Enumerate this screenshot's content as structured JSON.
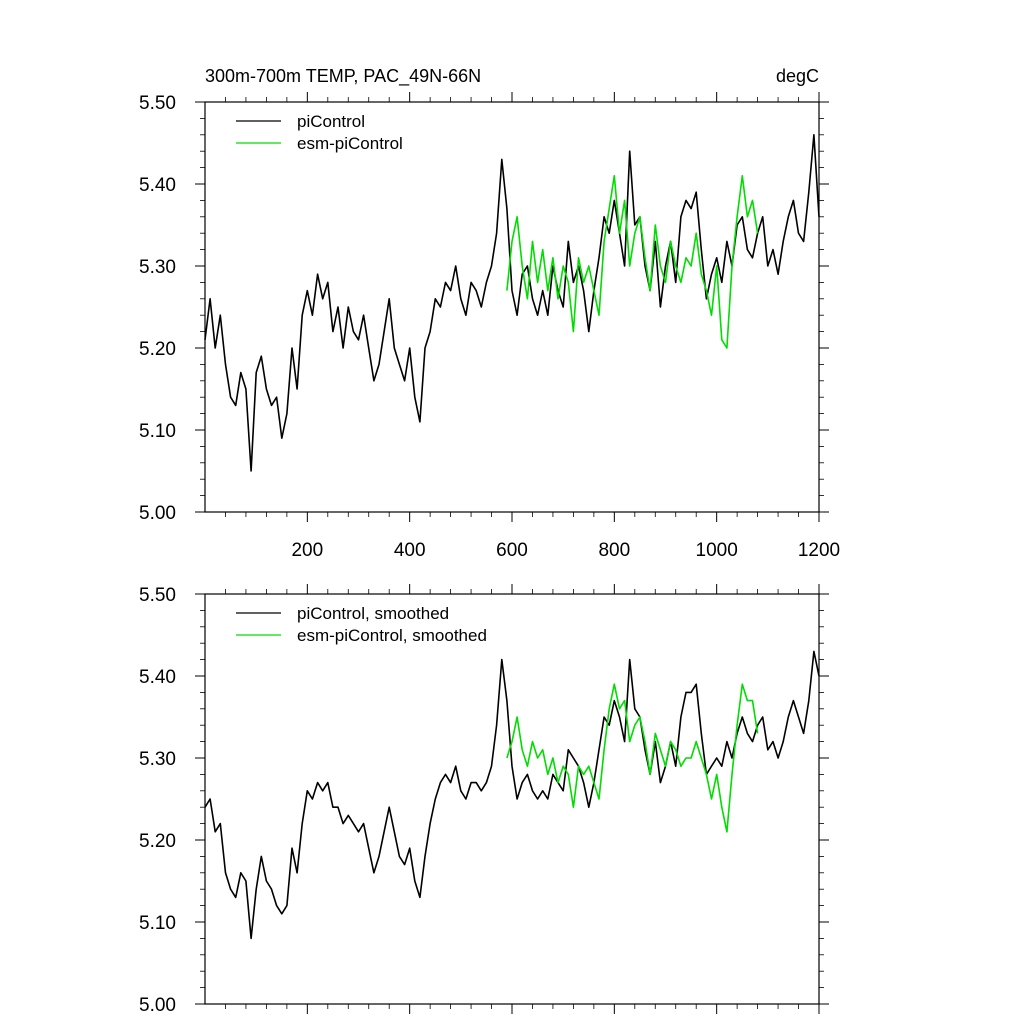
{
  "chart_data": [
    {
      "type": "line",
      "title": "300m-700m TEMP, PAC_49N-66N",
      "units": "degC",
      "xlim": [
        0,
        1200
      ],
      "ylim": [
        5.0,
        5.5
      ],
      "xticks": [
        200,
        400,
        600,
        800,
        1000,
        1200
      ],
      "yticks": [
        "5.00",
        "5.10",
        "5.20",
        "5.30",
        "5.40",
        "5.50"
      ],
      "legend_position": "top-left",
      "series": [
        {
          "name": "piControl",
          "color": "#000000",
          "x": [
            0,
            10,
            20,
            30,
            40,
            50,
            60,
            70,
            80,
            90,
            100,
            110,
            120,
            130,
            140,
            150,
            160,
            170,
            180,
            190,
            200,
            210,
            220,
            230,
            240,
            250,
            260,
            270,
            280,
            290,
            300,
            310,
            320,
            330,
            340,
            350,
            360,
            370,
            380,
            390,
            400,
            410,
            420,
            430,
            440,
            450,
            460,
            470,
            480,
            490,
            500,
            510,
            520,
            530,
            540,
            550,
            560,
            570,
            580,
            590,
            600,
            610,
            620,
            630,
            640,
            650,
            660,
            670,
            680,
            690,
            700,
            710,
            720,
            730,
            740,
            750,
            760,
            770,
            780,
            790,
            800,
            810,
            820,
            830,
            840,
            850,
            860,
            870,
            880,
            890,
            900,
            910,
            920,
            930,
            940,
            950,
            960,
            970,
            980,
            990,
            1000,
            1010,
            1020,
            1030,
            1040,
            1050,
            1060,
            1070,
            1080,
            1090,
            1100,
            1110,
            1120,
            1130,
            1140,
            1150,
            1160,
            1170,
            1180,
            1190,
            1200
          ],
          "values": [
            5.21,
            5.26,
            5.2,
            5.24,
            5.18,
            5.14,
            5.13,
            5.17,
            5.15,
            5.05,
            5.17,
            5.19,
            5.15,
            5.13,
            5.14,
            5.09,
            5.12,
            5.2,
            5.15,
            5.24,
            5.27,
            5.24,
            5.29,
            5.26,
            5.28,
            5.22,
            5.25,
            5.2,
            5.25,
            5.22,
            5.21,
            5.24,
            5.2,
            5.16,
            5.18,
            5.22,
            5.26,
            5.2,
            5.18,
            5.16,
            5.2,
            5.14,
            5.11,
            5.2,
            5.22,
            5.26,
            5.25,
            5.28,
            5.27,
            5.3,
            5.26,
            5.24,
            5.28,
            5.27,
            5.25,
            5.28,
            5.3,
            5.34,
            5.43,
            5.37,
            5.27,
            5.24,
            5.29,
            5.3,
            5.26,
            5.24,
            5.27,
            5.24,
            5.3,
            5.27,
            5.25,
            5.33,
            5.28,
            5.3,
            5.27,
            5.22,
            5.27,
            5.31,
            5.36,
            5.34,
            5.38,
            5.34,
            5.3,
            5.44,
            5.35,
            5.36,
            5.3,
            5.27,
            5.33,
            5.25,
            5.3,
            5.33,
            5.28,
            5.36,
            5.38,
            5.37,
            5.39,
            5.32,
            5.26,
            5.29,
            5.31,
            5.28,
            5.33,
            5.3,
            5.35,
            5.36,
            5.32,
            5.31,
            5.34,
            5.36,
            5.3,
            5.32,
            5.29,
            5.33,
            5.36,
            5.38,
            5.34,
            5.33,
            5.39,
            5.46,
            5.36
          ]
        },
        {
          "name": "esm-piControl",
          "color": "#00dd00",
          "x": [
            590,
            600,
            610,
            620,
            630,
            640,
            650,
            660,
            670,
            680,
            690,
            700,
            710,
            720,
            730,
            740,
            750,
            760,
            770,
            780,
            790,
            800,
            810,
            820,
            830,
            840,
            850,
            860,
            870,
            880,
            890,
            900,
            910,
            920,
            930,
            940,
            950,
            960,
            970,
            980,
            990,
            1000,
            1010,
            1020,
            1030,
            1040,
            1050,
            1060,
            1070,
            1080
          ],
          "values": [
            5.27,
            5.33,
            5.36,
            5.3,
            5.26,
            5.33,
            5.28,
            5.32,
            5.27,
            5.31,
            5.26,
            5.3,
            5.28,
            5.22,
            5.31,
            5.28,
            5.3,
            5.27,
            5.24,
            5.33,
            5.37,
            5.41,
            5.34,
            5.38,
            5.3,
            5.34,
            5.36,
            5.31,
            5.27,
            5.35,
            5.3,
            5.28,
            5.33,
            5.3,
            5.28,
            5.31,
            5.3,
            5.34,
            5.29,
            5.27,
            5.24,
            5.3,
            5.21,
            5.2,
            5.3,
            5.36,
            5.41,
            5.36,
            5.38,
            5.34
          ]
        }
      ]
    },
    {
      "type": "line",
      "title": "",
      "units": "",
      "xlim": [
        0,
        1200
      ],
      "ylim": [
        5.0,
        5.5
      ],
      "xticks": [],
      "yticks": [
        "5.00",
        "5.10",
        "5.20",
        "5.30",
        "5.40",
        "5.50"
      ],
      "legend_position": "top-left",
      "series": [
        {
          "name": "piControl, smoothed",
          "color": "#000000",
          "x": [
            0,
            10,
            20,
            30,
            40,
            50,
            60,
            70,
            80,
            90,
            100,
            110,
            120,
            130,
            140,
            150,
            160,
            170,
            180,
            190,
            200,
            210,
            220,
            230,
            240,
            250,
            260,
            270,
            280,
            290,
            300,
            310,
            320,
            330,
            340,
            350,
            360,
            370,
            380,
            390,
            400,
            410,
            420,
            430,
            440,
            450,
            460,
            470,
            480,
            490,
            500,
            510,
            520,
            530,
            540,
            550,
            560,
            570,
            580,
            590,
            600,
            610,
            620,
            630,
            640,
            650,
            660,
            670,
            680,
            690,
            700,
            710,
            720,
            730,
            740,
            750,
            760,
            770,
            780,
            790,
            800,
            810,
            820,
            830,
            840,
            850,
            860,
            870,
            880,
            890,
            900,
            910,
            920,
            930,
            940,
            950,
            960,
            970,
            980,
            990,
            1000,
            1010,
            1020,
            1030,
            1040,
            1050,
            1060,
            1070,
            1080,
            1090,
            1100,
            1110,
            1120,
            1130,
            1140,
            1150,
            1160,
            1170,
            1180,
            1190,
            1200
          ],
          "values": [
            5.24,
            5.25,
            5.21,
            5.22,
            5.16,
            5.14,
            5.13,
            5.16,
            5.15,
            5.08,
            5.14,
            5.18,
            5.15,
            5.14,
            5.12,
            5.11,
            5.12,
            5.19,
            5.16,
            5.22,
            5.26,
            5.25,
            5.27,
            5.26,
            5.27,
            5.24,
            5.24,
            5.22,
            5.23,
            5.22,
            5.21,
            5.22,
            5.19,
            5.16,
            5.18,
            5.21,
            5.24,
            5.21,
            5.18,
            5.17,
            5.19,
            5.15,
            5.13,
            5.18,
            5.22,
            5.25,
            5.27,
            5.28,
            5.27,
            5.29,
            5.26,
            5.25,
            5.27,
            5.27,
            5.26,
            5.27,
            5.29,
            5.34,
            5.42,
            5.37,
            5.29,
            5.25,
            5.27,
            5.28,
            5.26,
            5.25,
            5.26,
            5.25,
            5.28,
            5.27,
            5.26,
            5.31,
            5.3,
            5.29,
            5.27,
            5.24,
            5.27,
            5.31,
            5.35,
            5.34,
            5.37,
            5.35,
            5.32,
            5.42,
            5.36,
            5.35,
            5.31,
            5.28,
            5.32,
            5.27,
            5.29,
            5.32,
            5.29,
            5.35,
            5.38,
            5.38,
            5.39,
            5.33,
            5.28,
            5.29,
            5.3,
            5.29,
            5.32,
            5.3,
            5.33,
            5.35,
            5.33,
            5.32,
            5.34,
            5.35,
            5.31,
            5.32,
            5.3,
            5.32,
            5.35,
            5.37,
            5.35,
            5.33,
            5.37,
            5.43,
            5.4
          ]
        },
        {
          "name": "esm-piControl, smoothed",
          "color": "#00dd00",
          "x": [
            590,
            600,
            610,
            620,
            630,
            640,
            650,
            660,
            670,
            680,
            690,
            700,
            710,
            720,
            730,
            740,
            750,
            760,
            770,
            780,
            790,
            800,
            810,
            820,
            830,
            840,
            850,
            860,
            870,
            880,
            890,
            900,
            910,
            920,
            930,
            940,
            950,
            960,
            970,
            980,
            990,
            1000,
            1010,
            1020,
            1030,
            1040,
            1050,
            1060,
            1070,
            1080
          ],
          "values": [
            5.3,
            5.32,
            5.35,
            5.31,
            5.29,
            5.32,
            5.3,
            5.31,
            5.28,
            5.3,
            5.27,
            5.29,
            5.28,
            5.24,
            5.29,
            5.28,
            5.29,
            5.27,
            5.25,
            5.31,
            5.36,
            5.39,
            5.36,
            5.37,
            5.32,
            5.34,
            5.35,
            5.32,
            5.28,
            5.33,
            5.31,
            5.29,
            5.32,
            5.31,
            5.29,
            5.3,
            5.3,
            5.32,
            5.3,
            5.28,
            5.25,
            5.28,
            5.24,
            5.21,
            5.28,
            5.34,
            5.39,
            5.37,
            5.37,
            5.33
          ]
        }
      ]
    }
  ]
}
